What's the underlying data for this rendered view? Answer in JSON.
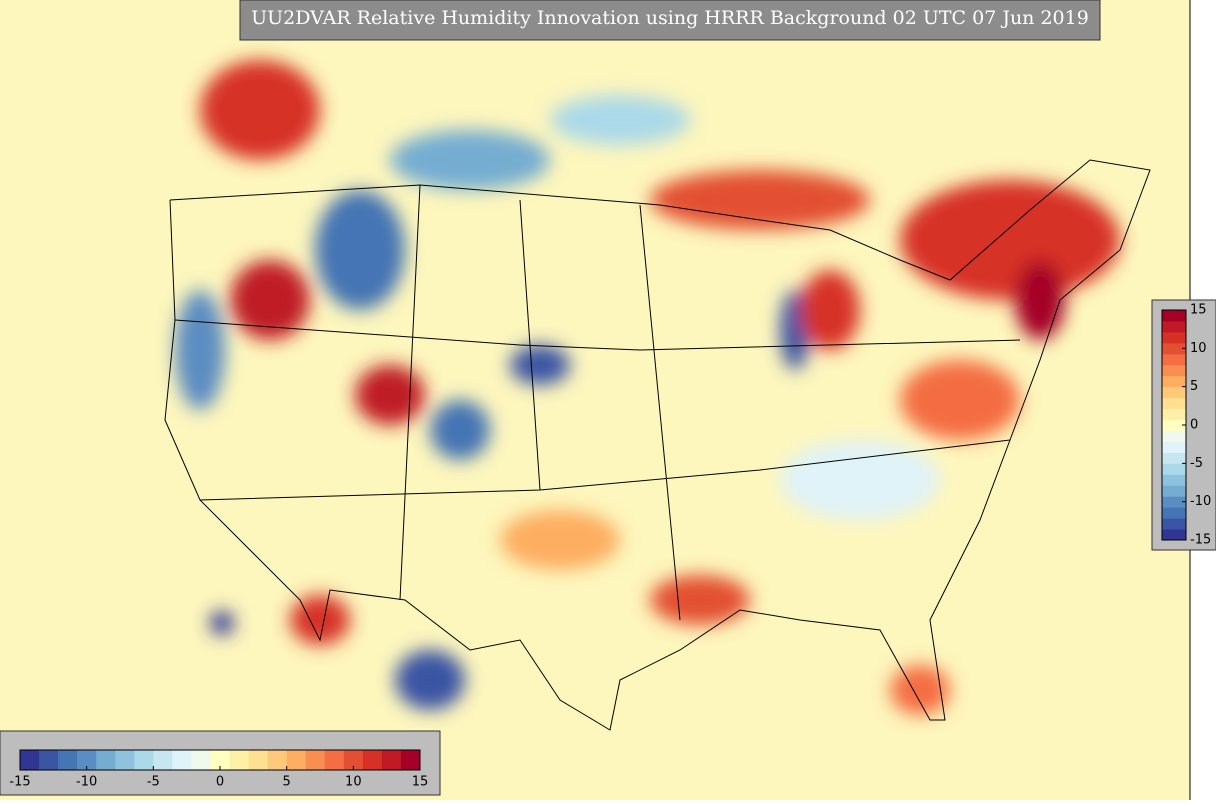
{
  "chart_data": {
    "type": "colormap-map",
    "title": "UU2DVAR Relative Humidity Innovation using HRRR Background 02 UTC 07 Jun 2019",
    "colorbar": {
      "lim": [
        -15,
        15
      ],
      "ticks": [
        -15,
        -10,
        -5,
        0,
        5,
        10,
        15
      ],
      "colors": [
        "#313695",
        "#3a55a4",
        "#4575b4",
        "#5b8dc2",
        "#74add1",
        "#8fc3dd",
        "#abd9e9",
        "#c6e6f1",
        "#e0f3f8",
        "#f0f9ee",
        "#ffffbf",
        "#fff0a8",
        "#fee090",
        "#fec97a",
        "#fdae61",
        "#f98e52",
        "#f46d43",
        "#e34f33",
        "#d73027",
        "#c01a27",
        "#a50026"
      ]
    }
  }
}
